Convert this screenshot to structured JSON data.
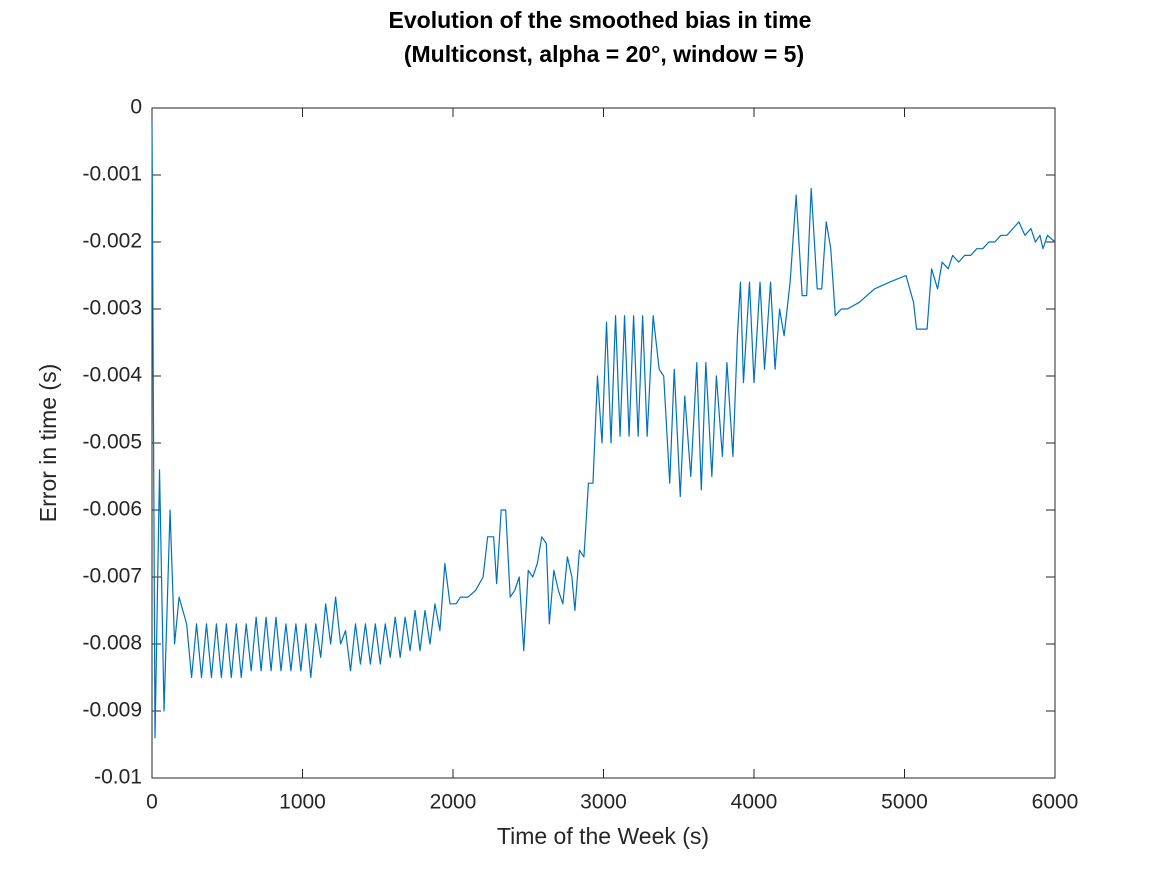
{
  "chart_data": {
    "type": "line",
    "title": [
      "Evolution of the smoothed bias in time",
      "(Multiconst, alpha = 20°, window = 5)"
    ],
    "x_label": "Time of the Week (s)",
    "y_label": "Error in time (s)",
    "xlim": [
      0,
      6000
    ],
    "xticks": [
      0,
      1000,
      2000,
      3000,
      4000,
      5000,
      6000
    ],
    "ylim": [
      -0.01,
      0
    ],
    "yticks": [
      0,
      -0.001,
      -0.002,
      -0.003,
      -0.004,
      -0.005,
      -0.006,
      -0.007,
      -0.008,
      -0.009,
      -0.01
    ],
    "color": "#0072bd",
    "x": [
      0,
      20,
      50,
      80,
      120,
      150,
      180,
      230,
      263,
      296,
      329,
      362,
      395,
      428,
      461,
      494,
      527,
      560,
      593,
      626,
      659,
      692,
      725,
      758,
      791,
      824,
      857,
      890,
      923,
      956,
      989,
      1022,
      1055,
      1088,
      1121,
      1154,
      1187,
      1220,
      1253,
      1286,
      1319,
      1352,
      1385,
      1418,
      1451,
      1484,
      1517,
      1550,
      1583,
      1616,
      1649,
      1682,
      1715,
      1748,
      1781,
      1814,
      1847,
      1880,
      1913,
      1946,
      1980,
      2020,
      2050,
      2100,
      2150,
      2200,
      2230,
      2270,
      2290,
      2320,
      2350,
      2380,
      2410,
      2440,
      2470,
      2500,
      2530,
      2560,
      2590,
      2620,
      2640,
      2670,
      2700,
      2730,
      2760,
      2790,
      2810,
      2840,
      2870,
      2900,
      2930,
      2960,
      2990,
      3020,
      3050,
      3080,
      3110,
      3140,
      3170,
      3200,
      3230,
      3260,
      3290,
      3330,
      3370,
      3400,
      3440,
      3470,
      3510,
      3540,
      3580,
      3620,
      3650,
      3680,
      3720,
      3750,
      3790,
      3820,
      3860,
      3890,
      3910,
      3930,
      3970,
      4000,
      4040,
      4070,
      4110,
      4140,
      4170,
      4200,
      4240,
      4280,
      4320,
      4350,
      4380,
      4420,
      4450,
      4480,
      4510,
      4540,
      4580,
      4620,
      4700,
      4800,
      4900,
      5010,
      5060,
      5080,
      5150,
      5180,
      5220,
      5250,
      5290,
      5320,
      5360,
      5400,
      5440,
      5480,
      5520,
      5560,
      5600,
      5640,
      5680,
      5720,
      5760,
      5800,
      5840,
      5870,
      5900,
      5920,
      5950,
      6000
    ],
    "values": [
      -0.0002,
      -0.0094,
      -0.0054,
      -0.009,
      -0.006,
      -0.008,
      -0.0073,
      -0.0077,
      -0.0085,
      -0.0077,
      -0.0085,
      -0.0077,
      -0.0085,
      -0.0077,
      -0.0085,
      -0.0077,
      -0.0085,
      -0.0077,
      -0.0085,
      -0.0077,
      -0.0084,
      -0.0076,
      -0.0084,
      -0.0076,
      -0.0084,
      -0.0076,
      -0.0084,
      -0.0077,
      -0.0084,
      -0.0077,
      -0.0084,
      -0.0077,
      -0.0085,
      -0.0077,
      -0.0082,
      -0.0074,
      -0.008,
      -0.0073,
      -0.008,
      -0.0078,
      -0.0084,
      -0.0077,
      -0.0083,
      -0.0077,
      -0.0083,
      -0.0077,
      -0.0083,
      -0.0077,
      -0.0082,
      -0.0076,
      -0.0082,
      -0.0076,
      -0.0081,
      -0.0075,
      -0.0081,
      -0.0075,
      -0.008,
      -0.0074,
      -0.0078,
      -0.0068,
      -0.0074,
      -0.0074,
      -0.0073,
      -0.0073,
      -0.0072,
      -0.007,
      -0.0064,
      -0.0064,
      -0.0071,
      -0.006,
      -0.006,
      -0.0073,
      -0.0072,
      -0.007,
      -0.0081,
      -0.0069,
      -0.007,
      -0.0068,
      -0.0064,
      -0.0065,
      -0.0077,
      -0.0069,
      -0.0072,
      -0.0074,
      -0.0067,
      -0.007,
      -0.0075,
      -0.0066,
      -0.0067,
      -0.0056,
      -0.0056,
      -0.004,
      -0.005,
      -0.0032,
      -0.005,
      -0.0031,
      -0.0049,
      -0.0031,
      -0.0049,
      -0.0031,
      -0.0049,
      -0.0031,
      -0.0049,
      -0.0031,
      -0.0039,
      -0.004,
      -0.0056,
      -0.0039,
      -0.0058,
      -0.0043,
      -0.0055,
      -0.0038,
      -0.0057,
      -0.0038,
      -0.0055,
      -0.004,
      -0.0052,
      -0.0038,
      -0.0052,
      -0.0034,
      -0.0026,
      -0.0041,
      -0.0026,
      -0.0041,
      -0.0026,
      -0.0039,
      -0.0026,
      -0.0039,
      -0.003,
      -0.0034,
      -0.0026,
      -0.0013,
      -0.0028,
      -0.0028,
      -0.0012,
      -0.0027,
      -0.0027,
      -0.0017,
      -0.0021,
      -0.0031,
      -0.003,
      -0.003,
      -0.0029,
      -0.0027,
      -0.0026,
      -0.0025,
      -0.0029,
      -0.0033,
      -0.0033,
      -0.0024,
      -0.0027,
      -0.0023,
      -0.0024,
      -0.0022,
      -0.0023,
      -0.0022,
      -0.0022,
      -0.0021,
      -0.0021,
      -0.002,
      -0.002,
      -0.0019,
      -0.0019,
      -0.0018,
      -0.0017,
      -0.0019,
      -0.0018,
      -0.002,
      -0.0019,
      -0.0021,
      -0.0019,
      -0.002
    ]
  }
}
